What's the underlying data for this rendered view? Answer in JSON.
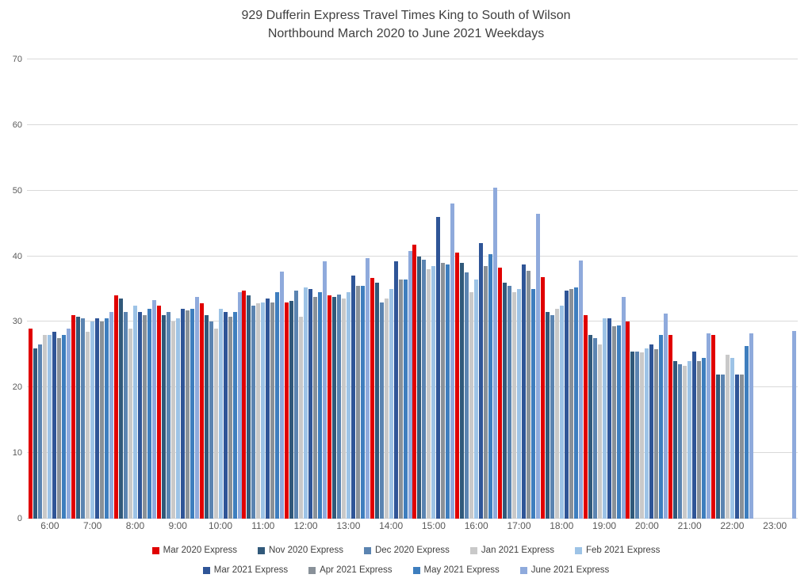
{
  "title": {
    "line1": "929 Dufferin Express Travel Times King to South of Wilson",
    "line2": "Northbound March 2020 to June 2021 Weekdays"
  },
  "chart_data": {
    "type": "bar",
    "title": "929 Dufferin Express Travel Times King to South of Wilson Northbound March 2020 to June 2021 Weekdays",
    "xlabel": "",
    "ylabel": "",
    "ylim": [
      0,
      70
    ],
    "y_ticks": [
      0,
      10,
      20,
      30,
      40,
      50,
      60,
      70
    ],
    "grid": true,
    "legend_position": "bottom",
    "categories": [
      "6:00",
      "7:00",
      "8:00",
      "9:00",
      "10:00",
      "11:00",
      "12:00",
      "13:00",
      "14:00",
      "15:00",
      "16:00",
      "17:00",
      "18:00",
      "19:00",
      "20:00",
      "21:00",
      "22:00",
      "23:00"
    ],
    "series": [
      {
        "name": "Mar 2020 Express",
        "color": "#e00000",
        "values": [
          29,
          31,
          34,
          32.5,
          32.8,
          34.8,
          33,
          34,
          36.7,
          41.8,
          40.5,
          38.3,
          36.8,
          31,
          30,
          28,
          28,
          null
        ]
      },
      {
        "name": "Nov 2020 Express",
        "color": "#31597a",
        "values": [
          26,
          30.8,
          33.5,
          31,
          31,
          34,
          33.2,
          33.8,
          36,
          40,
          39,
          36,
          31.5,
          28,
          25.5,
          24,
          22,
          null
        ]
      },
      {
        "name": "Dec 2020 Express",
        "color": "#5b84b1",
        "values": [
          26.5,
          30.5,
          31.5,
          31.5,
          30,
          32.5,
          34.8,
          34.2,
          33,
          39.5,
          37.5,
          35.5,
          31,
          27.5,
          25.5,
          23.5,
          22,
          null
        ]
      },
      {
        "name": "Jan 2021 Express",
        "color": "#c9c9c9",
        "values": [
          28,
          28.5,
          29,
          30,
          29,
          32.8,
          30.8,
          33.5,
          33.5,
          38,
          34.5,
          34.5,
          32,
          26.5,
          25.3,
          23.3,
          25,
          null
        ]
      },
      {
        "name": "Feb 2021 Express",
        "color": "#9dc3e6",
        "values": [
          28,
          30,
          32.5,
          30.5,
          32,
          33,
          35.2,
          34.5,
          35,
          38.5,
          36.5,
          35,
          32.5,
          30.5,
          26,
          24,
          24.5,
          null
        ]
      },
      {
        "name": "Mar 2021 Express",
        "color": "#2f5597",
        "values": [
          28.5,
          30.5,
          31.5,
          32,
          31.5,
          33.5,
          35,
          37,
          39.2,
          46,
          42,
          38.7,
          34.8,
          30.5,
          26.5,
          25.5,
          22,
          null
        ]
      },
      {
        "name": "Apr 2021 Express",
        "color": "#899199",
        "values": [
          27.5,
          30,
          31,
          31.8,
          30.8,
          33,
          33.8,
          35.5,
          36.5,
          39,
          38.5,
          37.8,
          35,
          29.3,
          25.8,
          24,
          22,
          null
        ]
      },
      {
        "name": "May 2021 Express",
        "color": "#3e7ebe",
        "values": [
          28,
          30.5,
          32,
          32,
          31.5,
          34.5,
          34.5,
          35.5,
          36.5,
          38.8,
          40.3,
          35,
          35.3,
          29.5,
          28,
          24.5,
          26.3,
          null
        ]
      },
      {
        "name": "June 2021 Express",
        "color": "#8faadc",
        "values": [
          29,
          31.5,
          33.3,
          33.8,
          34.5,
          37.7,
          39.2,
          39.7,
          40.8,
          48,
          50.5,
          46.5,
          39.3,
          33.8,
          31.3,
          28.3,
          28.2,
          28.6
        ]
      }
    ],
    "legend_rows": [
      [
        0,
        1,
        2,
        3,
        4
      ],
      [
        5,
        6,
        7,
        8
      ]
    ]
  }
}
